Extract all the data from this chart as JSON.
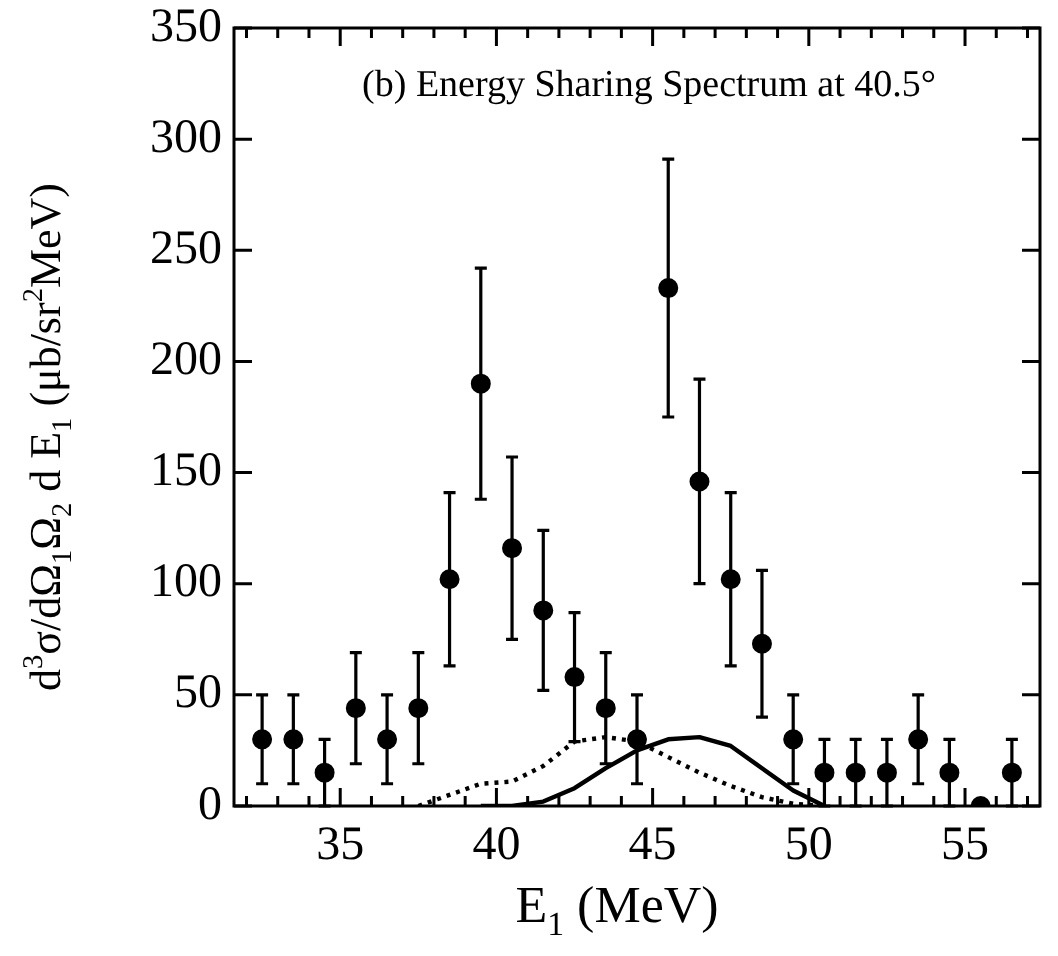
{
  "chart_data": {
    "type": "scatter",
    "title": "(b) Energy Sharing Spectrum at 40.5°",
    "xlabel": "E$_{1}$ (MeV)",
    "ylabel": "d$^{3}$σ/dΩ$_{1}$Ω$_{2}$ d E$_{1}$ (μb/sr$^{2}$MeV)",
    "xlim": [
      31.6,
      57.4
    ],
    "ylim": [
      0,
      350
    ],
    "xticks": [
      {
        "value": 32,
        "label": null
      },
      {
        "value": 33,
        "label": null
      },
      {
        "value": 34,
        "label": null
      },
      35,
      {
        "value": 36,
        "label": null
      },
      {
        "value": 37,
        "label": null
      },
      {
        "value": 38,
        "label": null
      },
      {
        "value": 39,
        "label": null
      },
      40,
      {
        "value": 41,
        "label": null
      },
      {
        "value": 42,
        "label": null
      },
      {
        "value": 43,
        "label": null
      },
      {
        "value": 44,
        "label": null
      },
      45,
      {
        "value": 46,
        "label": null
      },
      {
        "value": 47,
        "label": null
      },
      {
        "value": 48,
        "label": null
      },
      {
        "value": 49,
        "label": null
      },
      50,
      {
        "value": 51,
        "label": null
      },
      {
        "value": 52,
        "label": null
      },
      {
        "value": 53,
        "label": null
      },
      {
        "value": 54,
        "label": null
      },
      55,
      {
        "value": 56,
        "label": null
      },
      {
        "value": 57,
        "label": null
      }
    ],
    "yticks": [
      0,
      50,
      100,
      150,
      200,
      250,
      300,
      350
    ],
    "grid": false,
    "legend": false,
    "marker": "circle",
    "series": [
      {
        "color": "#000000",
        "x": [
          32.5,
          33.5,
          34.5,
          35.5,
          36.5,
          37.5,
          38.5,
          39.5,
          40.5,
          41.5,
          42.5,
          43.5,
          44.5,
          45.5,
          46.5,
          47.5,
          48.5,
          49.5,
          50.5,
          51.5,
          52.5,
          53.5,
          54.5,
          55.5,
          56.5
        ],
        "values": [
          30,
          30,
          15,
          44,
          30,
          44,
          102,
          190,
          116,
          88,
          58,
          44,
          30,
          233,
          146,
          102,
          73,
          30,
          15,
          15,
          15,
          30,
          15,
          0,
          15
        ],
        "errors": [
          20,
          20,
          15,
          25,
          20,
          25,
          39,
          52,
          41,
          36,
          29,
          25,
          20,
          58,
          46,
          39,
          33,
          20,
          15,
          15,
          15,
          20,
          15,
          null,
          15
        ]
      },
      {
        "type": "line",
        "color": "#000000",
        "marker": "none",
        "line_style": "dotted",
        "x": [
          37.5,
          38.5,
          39.5,
          40.5,
          41.5,
          42.5,
          43.5,
          44.5,
          45.5,
          46.5,
          47.5,
          48.5,
          49.5,
          50.5
        ],
        "values": [
          0,
          5,
          10,
          11,
          18,
          29,
          31,
          29,
          22,
          15,
          9,
          4,
          1,
          0
        ]
      },
      {
        "type": "line",
        "color": "#000000",
        "marker": "none",
        "line_style": "solid",
        "x": [
          39.5,
          40.5,
          41.5,
          42.5,
          43.5,
          44.5,
          45.5,
          46.5,
          47.5,
          48.5,
          49.5,
          50.5
        ],
        "values": [
          0,
          0,
          2,
          8,
          17,
          25,
          30,
          31,
          27,
          17,
          7,
          0
        ]
      }
    ]
  }
}
